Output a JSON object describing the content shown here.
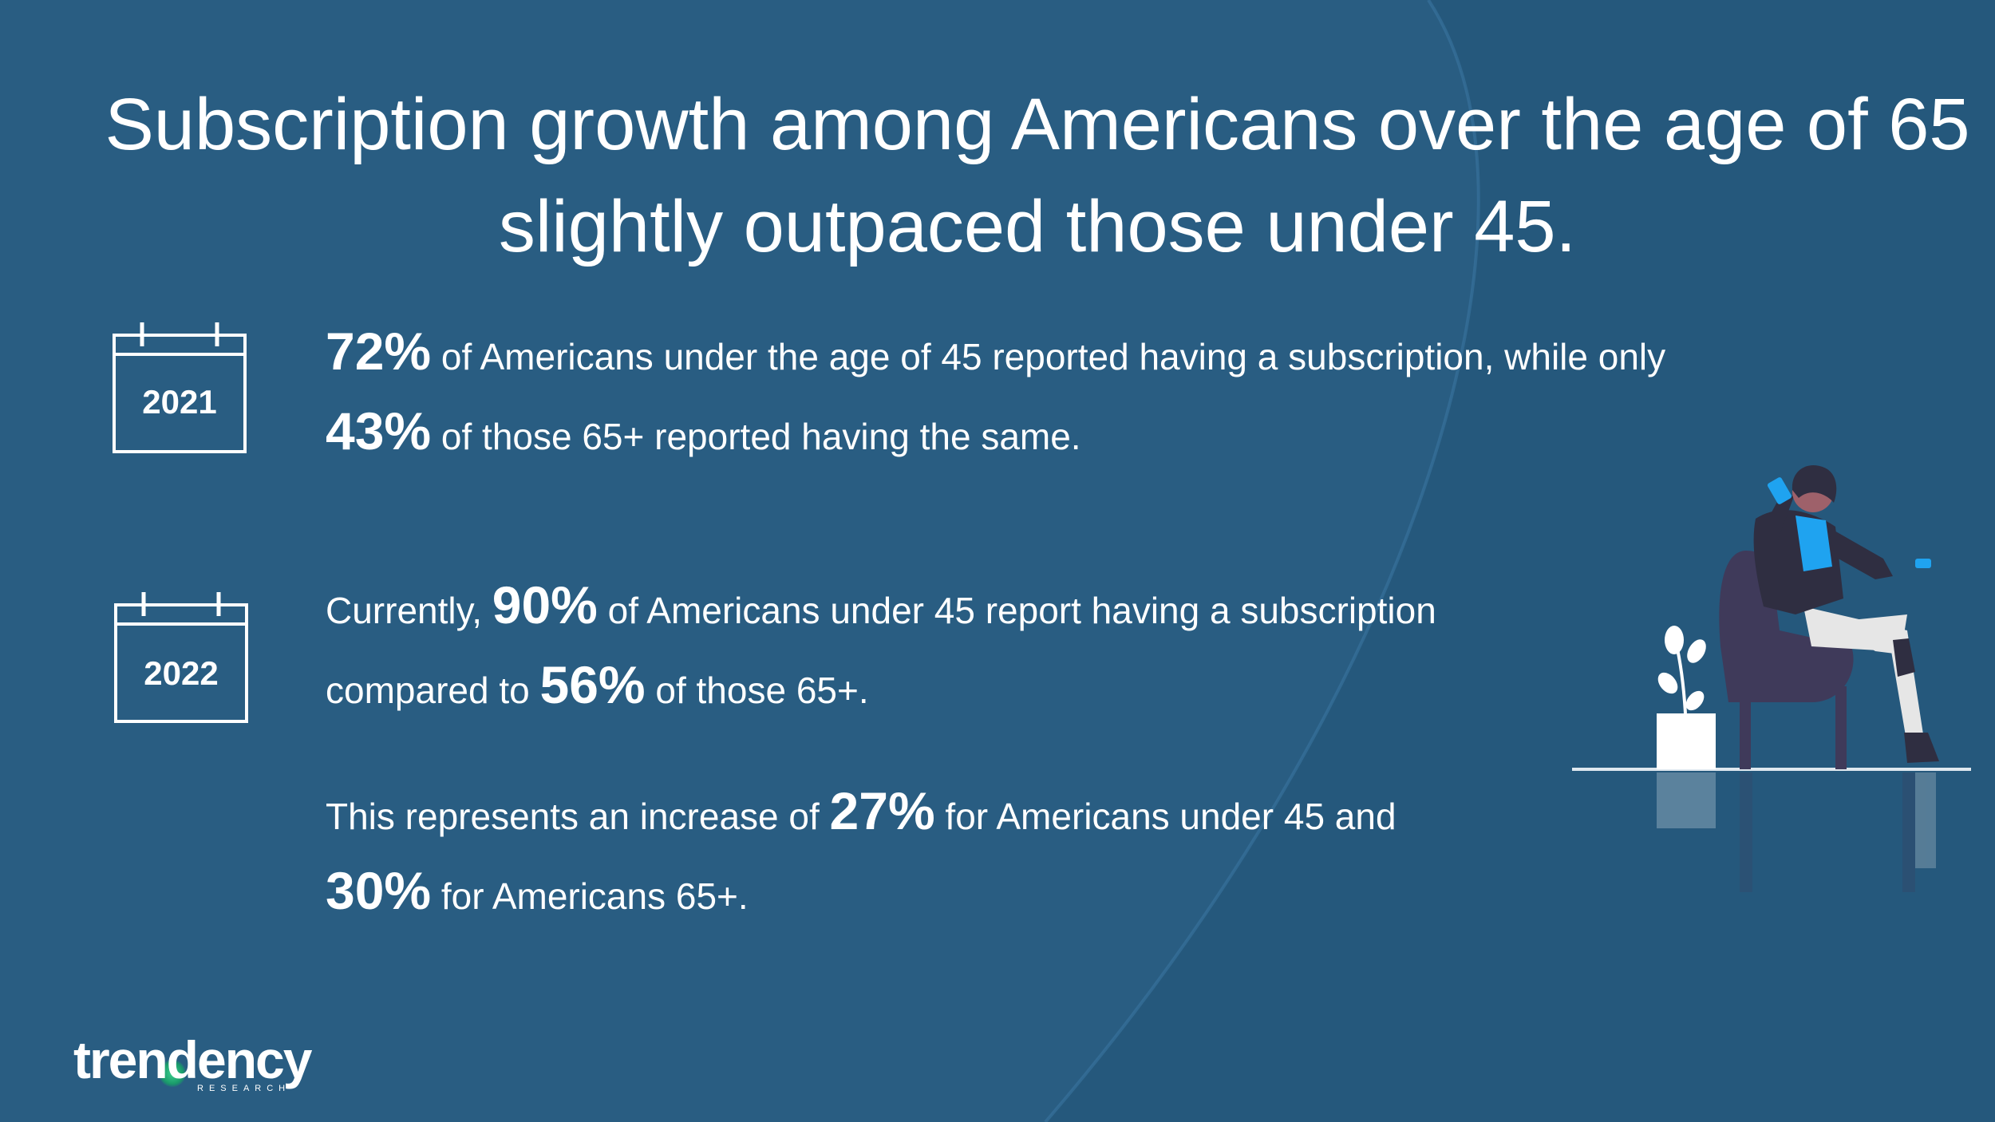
{
  "slide": {
    "title": "Subscription growth among Americans over the age of 65 slightly outpaced those under 45."
  },
  "calendars": [
    {
      "icon": "calendar-icon",
      "year": "2021"
    },
    {
      "icon": "calendar-icon",
      "year": "2022"
    }
  ],
  "blocks": {
    "y2021": {
      "stat_under45": "72%",
      "text_a": " of Americans under the age of 45 reported having a subscription, while only",
      "stat_65": "43%",
      "text_b": " of those 65+ reported having the same."
    },
    "y2022": {
      "text_a": "Currently, ",
      "stat_under45": "90%",
      "text_b": " of Americans under 45 report having a subscription",
      "text_c": "compared to ",
      "stat_65": "56%",
      "text_d": " of those 65+."
    },
    "increase": {
      "text_a": "This represents an increase of ",
      "stat_under45": "27%",
      "text_b": " for Americans under 45 and",
      "stat_65": "30%",
      "text_c": " for Americans 65+."
    }
  },
  "logo": {
    "name": "trendency",
    "sub": "RESEARCH"
  },
  "colors": {
    "background": "#295d82",
    "text": "#ffffff",
    "chair": "#3f3a5a",
    "accent_blue": "#1fa3f0"
  }
}
